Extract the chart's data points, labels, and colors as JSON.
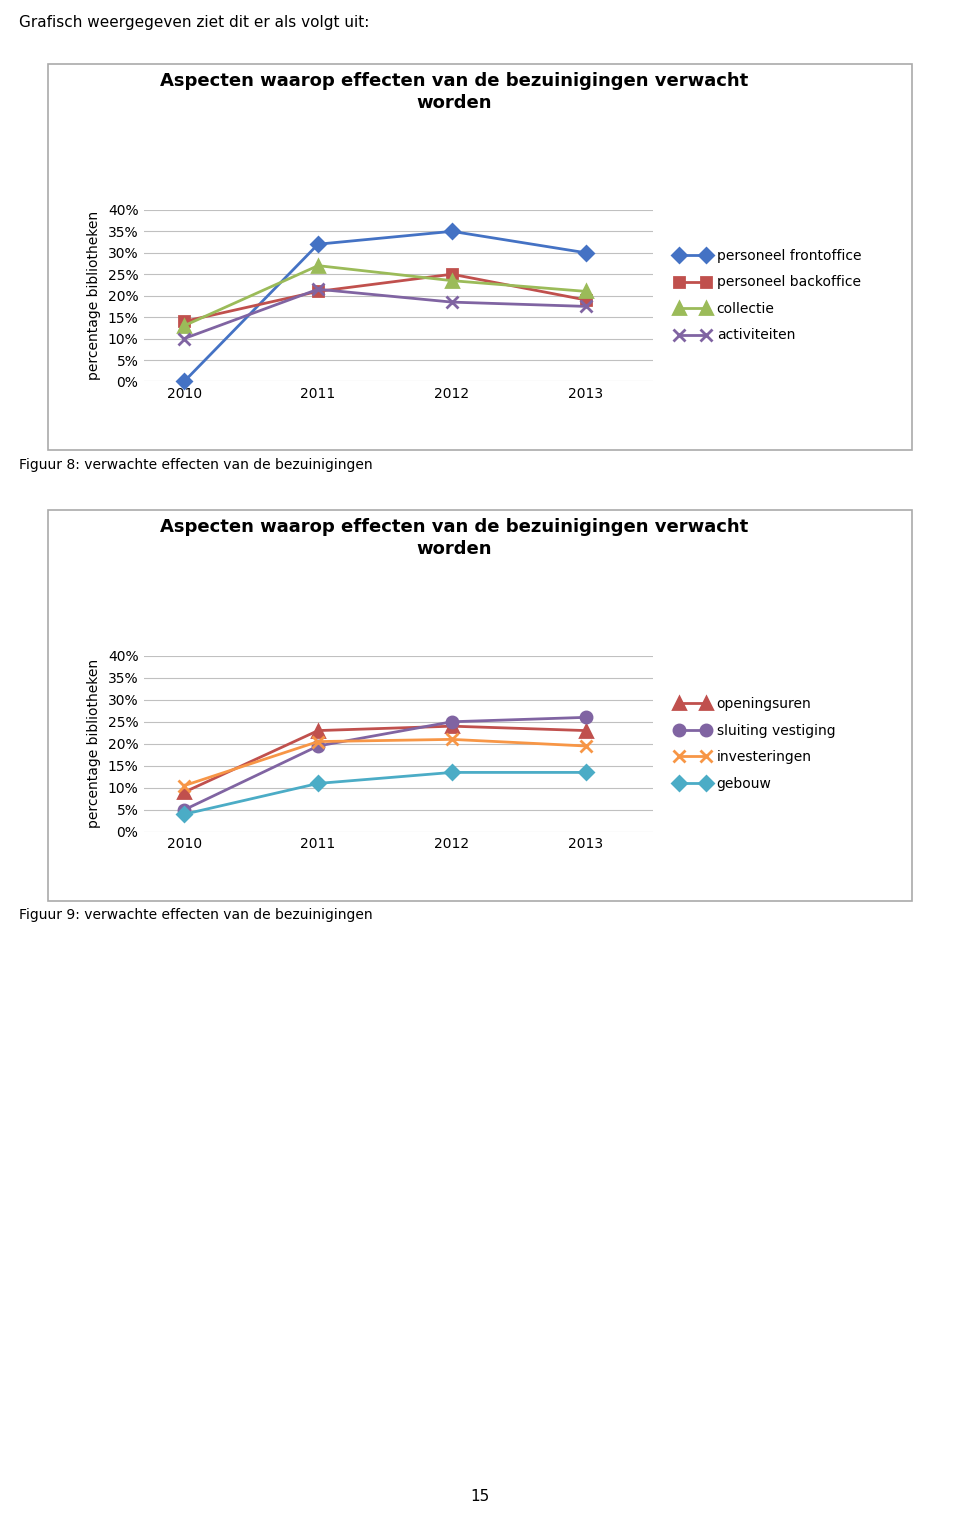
{
  "title": "Aspecten waarop effecten van de bezuinigingen verwacht\nworden",
  "ylabel": "percentage bibliotheken",
  "years": [
    2010,
    2011,
    2012,
    2013
  ],
  "chart1_series": [
    {
      "label": "personeel frontoffice",
      "values": [
        0.0,
        0.32,
        0.35,
        0.3
      ],
      "color": "#4472C4",
      "marker": "D",
      "markersize": 7,
      "linewidth": 2.0
    },
    {
      "label": "personeel backoffice",
      "values": [
        0.14,
        0.21,
        0.25,
        0.19
      ],
      "color": "#C0504D",
      "marker": "s",
      "markersize": 7,
      "linewidth": 2.0
    },
    {
      "label": "collectie",
      "values": [
        0.13,
        0.27,
        0.235,
        0.21
      ],
      "color": "#9BBB59",
      "marker": "^",
      "markersize": 8,
      "linewidth": 2.0
    },
    {
      "label": "activiteiten",
      "values": [
        0.1,
        0.215,
        0.185,
        0.175
      ],
      "color": "#8064A2",
      "marker": "x",
      "markersize": 9,
      "linewidth": 2.0
    }
  ],
  "chart2_series": [
    {
      "label": "openingsuren",
      "values": [
        0.09,
        0.23,
        0.24,
        0.23
      ],
      "color": "#C0504D",
      "marker": "^",
      "markersize": 8,
      "linewidth": 2.0
    },
    {
      "label": "sluiting vestiging",
      "values": [
        0.05,
        0.195,
        0.25,
        0.26
      ],
      "color": "#8064A2",
      "marker": "o",
      "markersize": 8,
      "linewidth": 2.0
    },
    {
      "label": "investeringen",
      "values": [
        0.105,
        0.205,
        0.21,
        0.195
      ],
      "color": "#F79646",
      "marker": "x",
      "markersize": 9,
      "linewidth": 2.0
    },
    {
      "label": "gebouw",
      "values": [
        0.04,
        0.11,
        0.135,
        0.135
      ],
      "color": "#4BACC6",
      "marker": "D",
      "markersize": 7,
      "linewidth": 2.0
    }
  ],
  "header_text": "Grafisch weergegeven ziet dit er als volgt uit:",
  "caption1": "Figuur 8: verwachte effecten van de bezuinigingen",
  "caption2": "Figuur 9: verwachte effecten van de bezuinigingen",
  "page_number": "15",
  "ylim": [
    0.0,
    0.4
  ],
  "yticks": [
    0.0,
    0.05,
    0.1,
    0.15,
    0.2,
    0.25,
    0.3,
    0.35,
    0.4
  ],
  "ytick_labels": [
    "0%",
    "5%",
    "10%",
    "15%",
    "20%",
    "25%",
    "30%",
    "35%",
    "40%"
  ],
  "bg_color": "#FFFFFF",
  "grid_color": "#C0C0C0",
  "box_color": "#AAAAAA"
}
